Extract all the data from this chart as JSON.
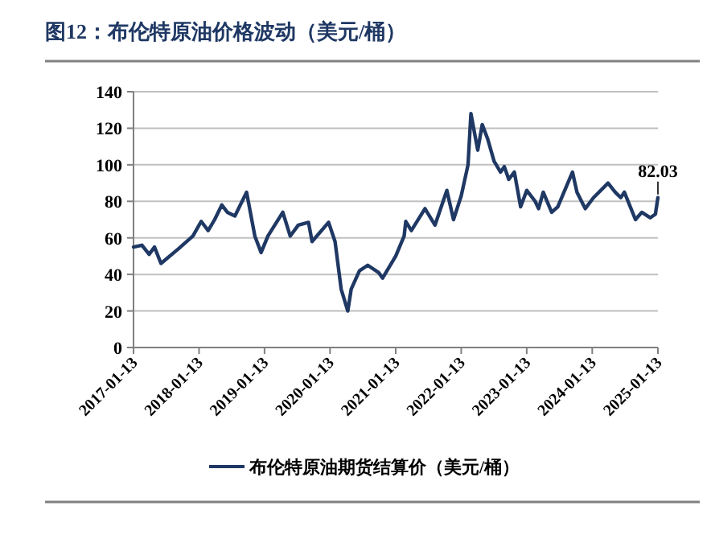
{
  "chart_data": {
    "type": "line",
    "title": "图12：布伦特原油价格波动（美元/桶）",
    "x": [
      "2017-01-13",
      "2017-03-01",
      "2017-04-10",
      "2017-05-10",
      "2017-06-15",
      "2017-09-20",
      "2017-12-10",
      "2018-01-25",
      "2018-03-05",
      "2018-04-10",
      "2018-05-20",
      "2018-06-20",
      "2018-08-01",
      "2018-10-05",
      "2018-11-20",
      "2018-12-25",
      "2019-02-01",
      "2019-04-25",
      "2019-06-05",
      "2019-07-20",
      "2019-09-15",
      "2019-10-05",
      "2020-01-05",
      "2020-02-10",
      "2020-03-15",
      "2020-04-21",
      "2020-05-10",
      "2020-06-25",
      "2020-08-10",
      "2020-10-10",
      "2020-11-01",
      "2021-01-13",
      "2021-03-01",
      "2021-03-10",
      "2021-04-10",
      "2021-06-25",
      "2021-08-20",
      "2021-10-25",
      "2021-12-01",
      "2022-01-13",
      "2022-02-20",
      "2022-03-08",
      "2022-04-15",
      "2022-05-10",
      "2022-06-10",
      "2022-07-15",
      "2022-08-20",
      "2022-09-10",
      "2022-10-05",
      "2022-11-05",
      "2022-12-10",
      "2023-01-13",
      "2023-03-01",
      "2023-03-20",
      "2023-04-15",
      "2023-06-01",
      "2023-07-05",
      "2023-09-25",
      "2023-10-20",
      "2023-12-05",
      "2024-01-20",
      "2024-04-10",
      "2024-05-20",
      "2024-06-20",
      "2024-07-10",
      "2024-09-10",
      "2024-10-15",
      "2024-12-01",
      "2024-12-30",
      "2025-01-13"
    ],
    "series": [
      {
        "name": "布伦特原油期货结算价（美元/桶）",
        "color": "#1f3864",
        "values": [
          55,
          56,
          51,
          55,
          46,
          54,
          61,
          69,
          64,
          70,
          78,
          74,
          72,
          85,
          61,
          52,
          61,
          74,
          61,
          67,
          68.5,
          58,
          68.5,
          58,
          32,
          20,
          32,
          42,
          45,
          41,
          38,
          50,
          61,
          69,
          64,
          76,
          67,
          86,
          70,
          83,
          100,
          128,
          108,
          122,
          114,
          102,
          96,
          99,
          92,
          96,
          77,
          86,
          80,
          76,
          85,
          74,
          77,
          96,
          85,
          76,
          82,
          90,
          85,
          82,
          85,
          70,
          74,
          71,
          73,
          82.03
        ]
      }
    ],
    "xlim": [
      "2017-01-13",
      "2025-01-13"
    ],
    "xticks": [
      "2017-01-13",
      "2018-01-13",
      "2019-01-13",
      "2020-01-13",
      "2021-01-13",
      "2022-01-13",
      "2023-01-13",
      "2024-01-13",
      "2025-01-13"
    ],
    "ylim": [
      0,
      140
    ],
    "yticks": [
      0,
      20,
      40,
      60,
      80,
      100,
      120,
      140
    ],
    "grid": "y",
    "legend": "bottom",
    "line_style": "solid",
    "marker": "none",
    "annotations": [
      {
        "text": "82.03",
        "x": "2025-01-13",
        "y": 82.03
      }
    ]
  }
}
